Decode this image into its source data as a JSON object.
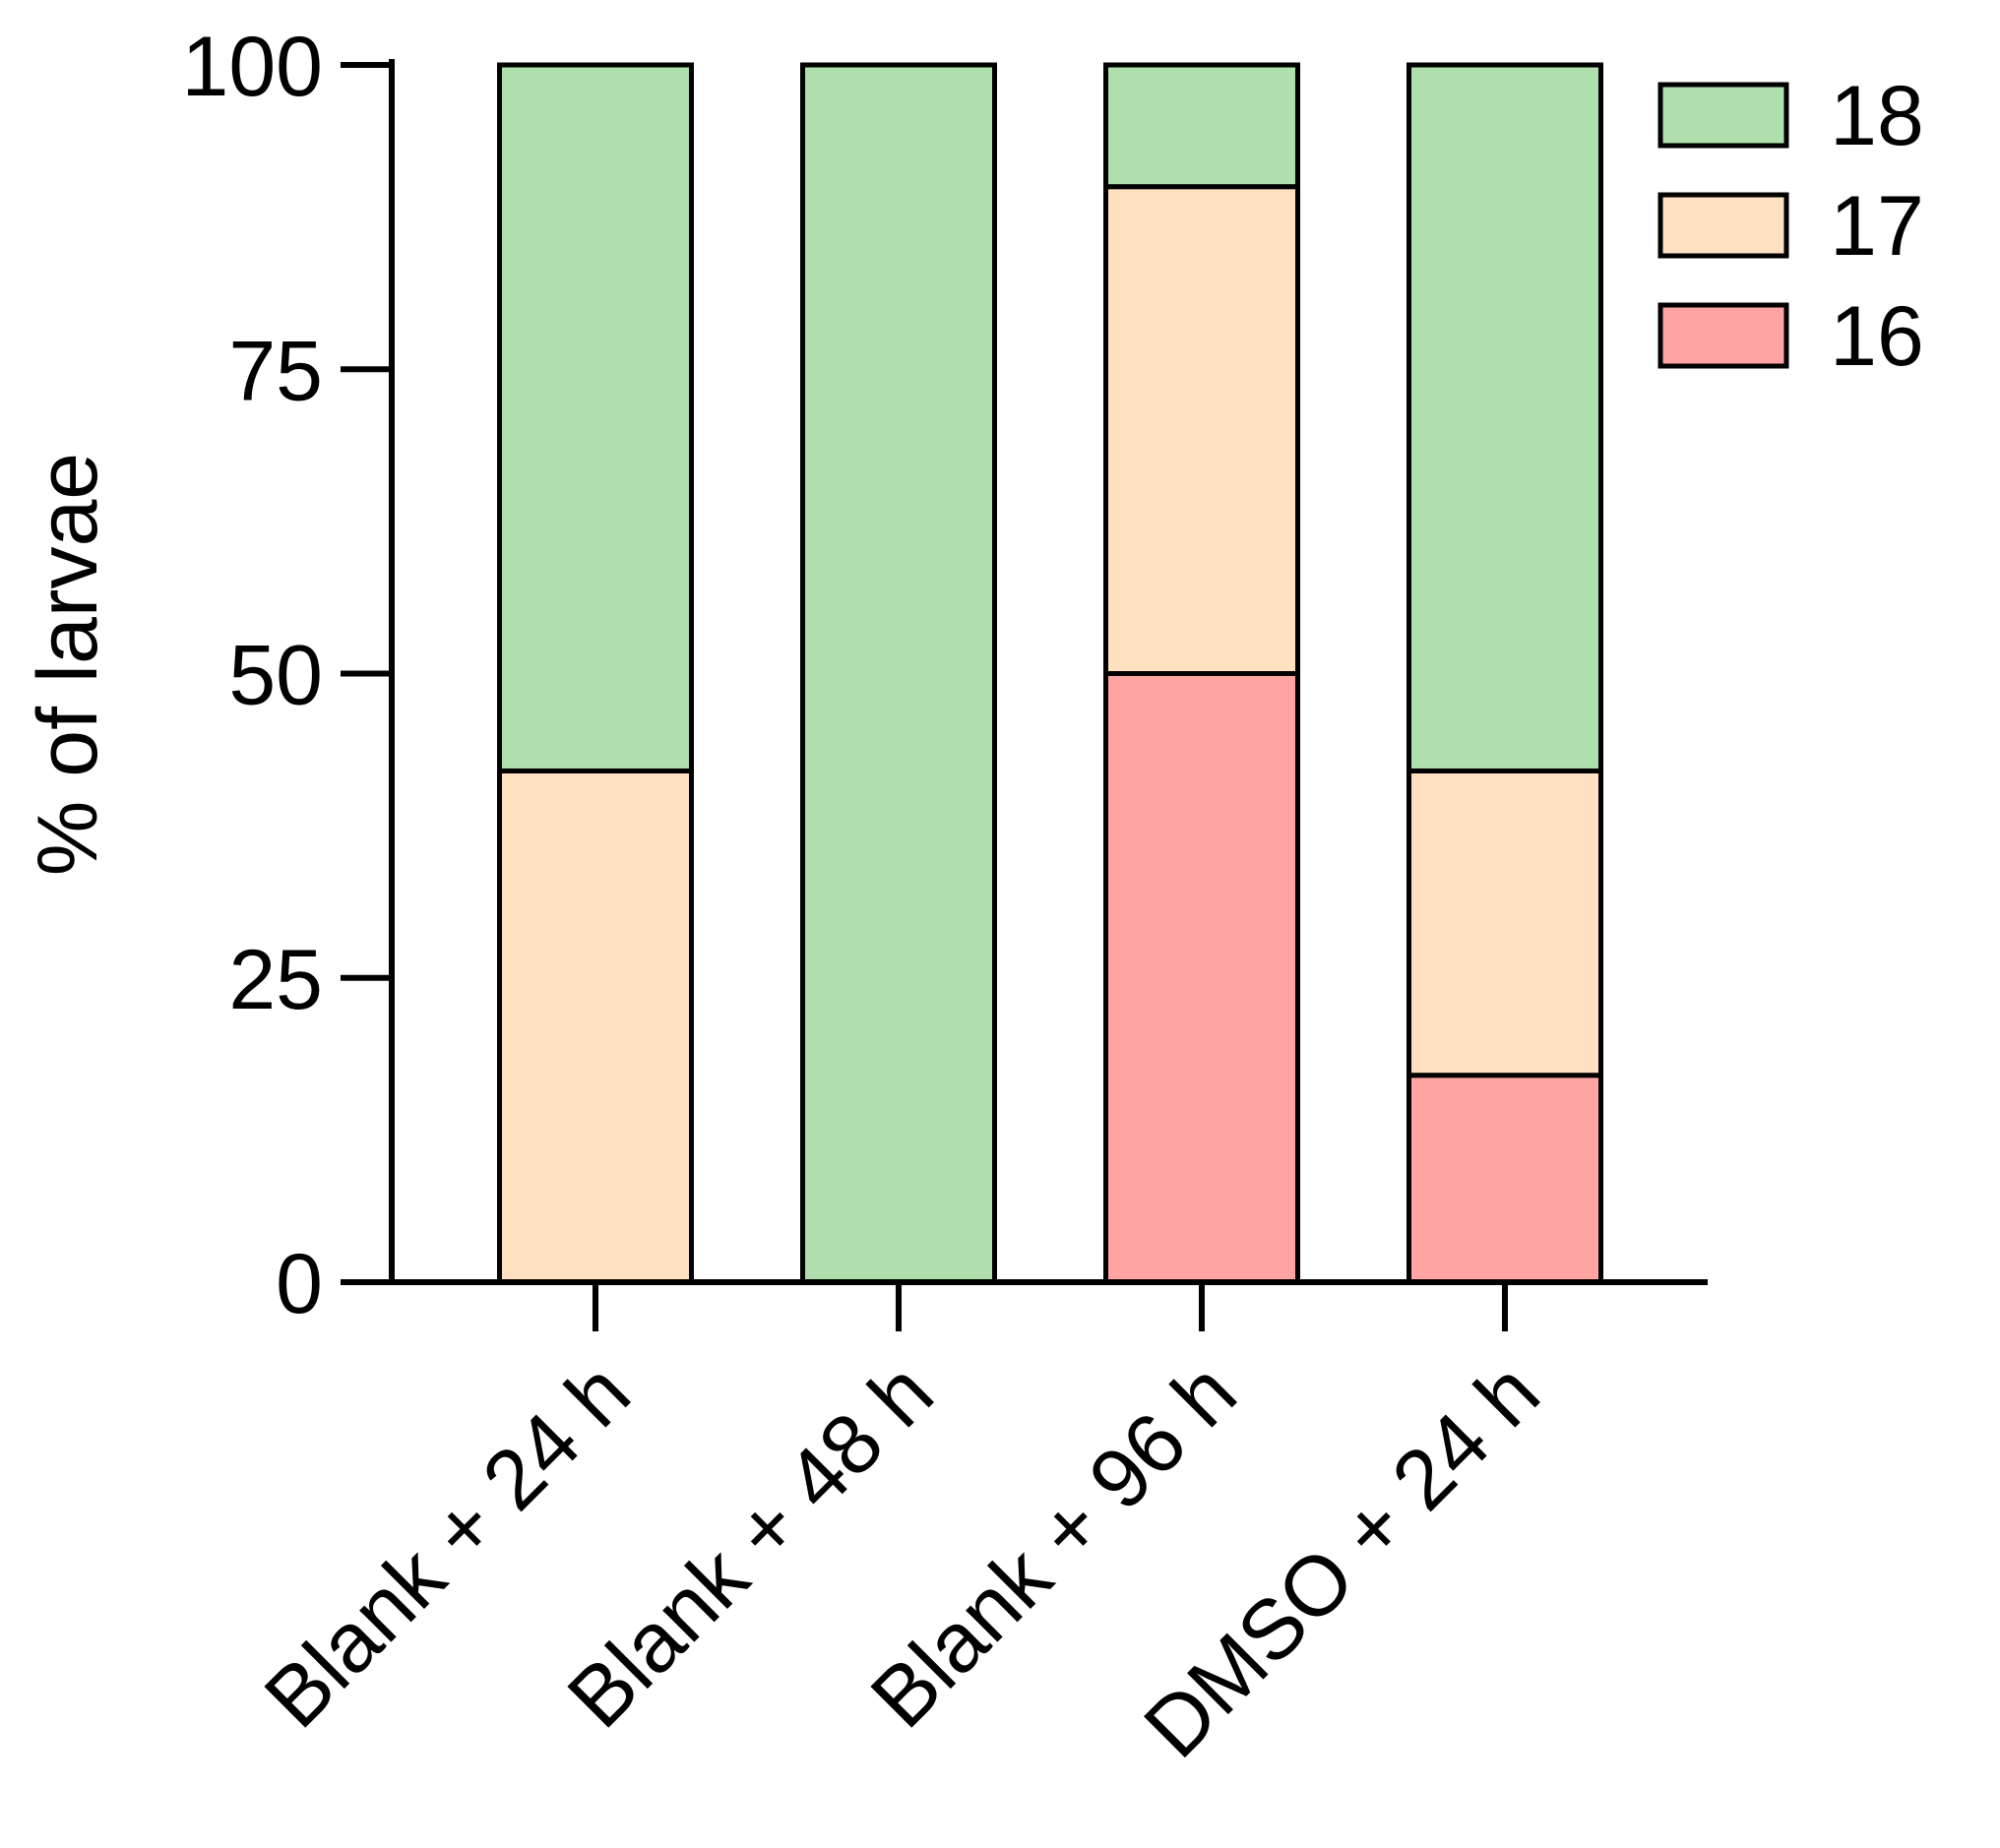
{
  "chart_data": {
    "type": "bar",
    "stacked": true,
    "title": "",
    "xlabel": "",
    "ylabel": "% of larvae",
    "ylim": [
      0,
      100
    ],
    "yticks": [
      0,
      25,
      50,
      75,
      100
    ],
    "categories": [
      "Blank + 24 h",
      "Blank + 48 h",
      "Blank + 96 h",
      "DMSO + 24 h"
    ],
    "series": [
      {
        "name": "16",
        "color": "#ffa3a3",
        "values": [
          0,
          0,
          50,
          17
        ]
      },
      {
        "name": "17",
        "color": "#ffe1c2",
        "values": [
          42,
          0,
          40,
          25
        ]
      },
      {
        "name": "18",
        "color": "#aedfad",
        "values": [
          58,
          100,
          10,
          58
        ]
      }
    ],
    "legend_order": [
      "18",
      "17",
      "16"
    ],
    "legend_position": "top-right",
    "grid": false
  }
}
